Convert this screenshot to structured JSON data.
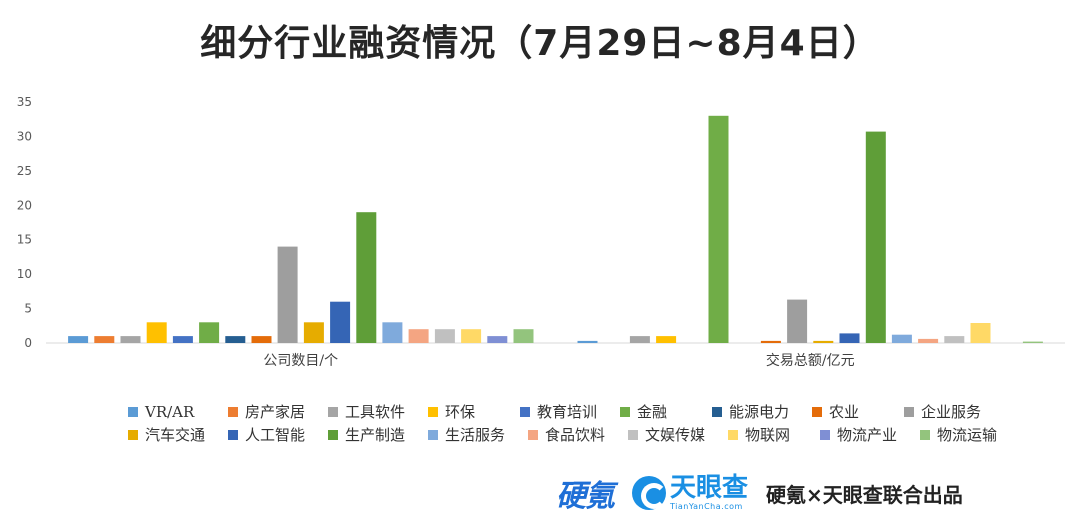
{
  "title": "细分行业融资情况（7月29日~8月4日）",
  "chart_data": {
    "type": "bar",
    "categories": [
      "公司数目/个",
      "交易总额/亿元"
    ],
    "ylim": [
      0,
      35
    ],
    "yticks": [
      0,
      5,
      10,
      15,
      20,
      25,
      30,
      35
    ],
    "grid": false,
    "legend_position": "bottom",
    "series": [
      {
        "name": "VR/AR",
        "color": "#5b9bd5",
        "values": [
          1,
          0.3
        ]
      },
      {
        "name": "房产家居",
        "color": "#ed7d31",
        "values": [
          1,
          0
        ]
      },
      {
        "name": "工具软件",
        "color": "#a5a5a5",
        "values": [
          1,
          1
        ]
      },
      {
        "name": "环保",
        "color": "#ffc000",
        "values": [
          3,
          1
        ]
      },
      {
        "name": "教育培训",
        "color": "#4472c4",
        "values": [
          1,
          0
        ]
      },
      {
        "name": "金融",
        "color": "#70ad47",
        "values": [
          3,
          33
        ]
      },
      {
        "name": "能源电力",
        "color": "#255e91",
        "values": [
          1,
          0
        ]
      },
      {
        "name": "农业",
        "color": "#e46c0a",
        "values": [
          1,
          0.3
        ]
      },
      {
        "name": "企业服务",
        "color": "#9e9e9e",
        "values": [
          14,
          6.3
        ]
      },
      {
        "name": "汽车交通",
        "color": "#e6ac00",
        "values": [
          3,
          0.3
        ]
      },
      {
        "name": "人工智能",
        "color": "#3565b5",
        "values": [
          6,
          1.4
        ]
      },
      {
        "name": "生产制造",
        "color": "#5f9e38",
        "values": [
          19,
          30.7
        ]
      },
      {
        "name": "生活服务",
        "color": "#7faadc",
        "values": [
          3,
          1.2
        ]
      },
      {
        "name": "食品饮料",
        "color": "#f4a582",
        "values": [
          2,
          0.6
        ]
      },
      {
        "name": "文娱传媒",
        "color": "#c0c0c0",
        "values": [
          2,
          1
        ]
      },
      {
        "name": "物联网",
        "color": "#ffd966",
        "values": [
          2,
          2.9
        ]
      },
      {
        "name": "物流产业",
        "color": "#7f8fd4",
        "values": [
          1,
          0
        ]
      },
      {
        "name": "物流运输",
        "color": "#93c47d",
        "values": [
          2,
          0.2
        ]
      }
    ]
  },
  "footer": {
    "logo_ying": "硬氪",
    "logo_tyc_cn": "天眼查",
    "logo_tyc_en": "TianYanCha.com",
    "credit": "硬氪×天眼查联合出品"
  }
}
